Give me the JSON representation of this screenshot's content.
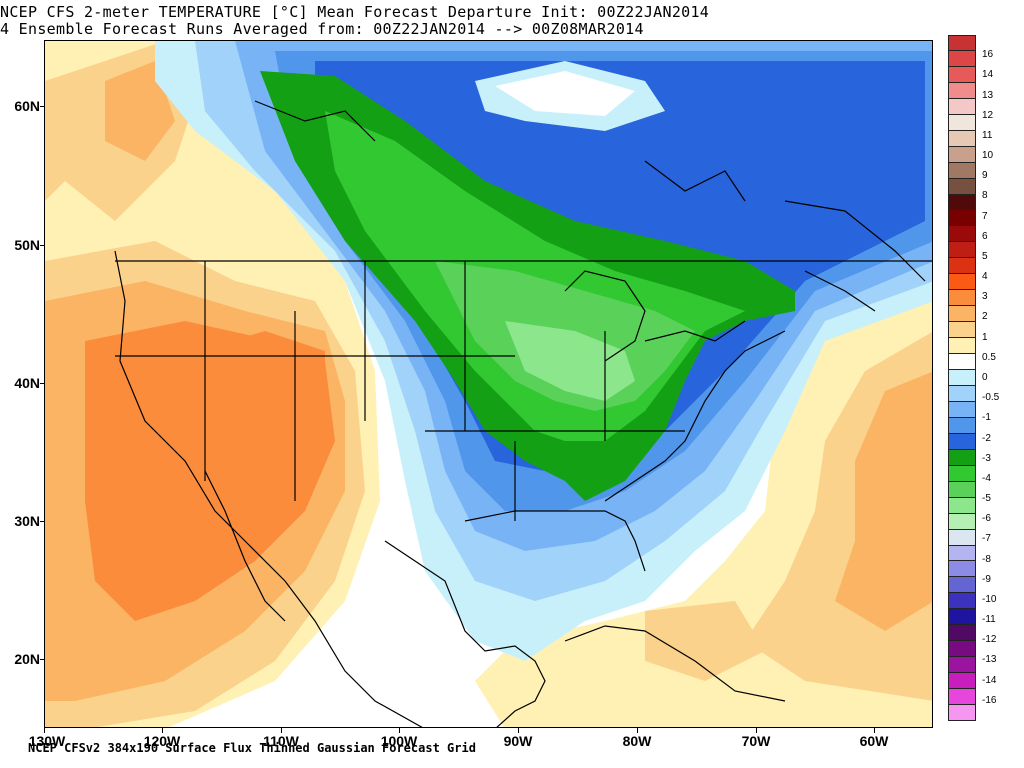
{
  "title": {
    "line1": "NCEP CFS 2-meter TEMPERATURE [°C] Mean Forecast Departure Init: 00Z22JAN2014",
    "line2": "4 Ensemble Forecast Runs Averaged from: 00Z22JAN2014 --> 00Z08MAR2014"
  },
  "footer": "NCEP CFSv2 384x190 Surface Flux Thinned Gaussian Forecast Grid",
  "axes": {
    "lat_labels": [
      "60N",
      "50N",
      "40N",
      "30N",
      "20N"
    ],
    "lon_labels": [
      "130W",
      "120W",
      "110W",
      "100W",
      "90W",
      "80W",
      "70W",
      "60W"
    ]
  },
  "colorbar": {
    "labels": [
      "16",
      "14",
      "13",
      "12",
      "11",
      "10",
      "9",
      "8",
      "7",
      "6",
      "5",
      "4",
      "3",
      "2",
      "1",
      "0.5",
      "0",
      "-0.5",
      "-1",
      "-2",
      "-3",
      "-4",
      "-5",
      "-6",
      "-7",
      "-8",
      "-9",
      "-10",
      "-11",
      "-12",
      "-13",
      "-14",
      "-16"
    ],
    "colors": [
      "#c83232",
      "#dc4646",
      "#e65a5a",
      "#f08c8c",
      "#f5b4b4",
      "#f0dcd2",
      "#e6c8b4",
      "#d2aa96",
      "#b48c78",
      "#96644b",
      "#6e3c28",
      "#780000",
      "#8c0a0a",
      "#aa1414",
      "#c82814",
      "#e63c14",
      "#fa5a14",
      "#fa7828",
      "#fa9650",
      "#fab46e",
      "#fad28c",
      "#fff0b4",
      "#ffffff",
      "#b4f0fa",
      "#96d2fa",
      "#78b9fa",
      "#5096f0",
      "#3c78e6",
      "#1e6eeb",
      "#14a01e",
      "#28be28",
      "#50d250",
      "#78e678",
      "#a0f0a0",
      "#c8ffc8",
      "#dcdcf5",
      "#b4b4f0",
      "#8c8ce6",
      "#6e64dc",
      "#4b3cc8",
      "#2d1eaa",
      "#500064",
      "#7d0a82",
      "#a01496",
      "#c81eb4",
      "#e63cd2",
      "#f58cf0"
    ],
    "selected_colors": [
      "#c83232",
      "#dc4646",
      "#e65a5a",
      "#f08c8c",
      "#f5c8c8",
      "#f0e6dc",
      "#e6c8b4",
      "#c8a08c",
      "#a07864",
      "#785040",
      "#500a0a",
      "#780000",
      "#9b0a0a",
      "#be1e14",
      "#dc3214",
      "#fa5a14",
      "#fa8c3c",
      "#fab464",
      "#fad28c",
      "#fff0b4",
      "#ffffff",
      "#c8f0fa",
      "#a0d2fa",
      "#78b4f5",
      "#5096eb",
      "#2864dc",
      "#14a014",
      "#32c832",
      "#5ad25a",
      "#8ce68c",
      "#b4f0b4",
      "#dce6f0",
      "#b4b4f0",
      "#8c8ce6",
      "#6464d2",
      "#3c32be",
      "#1e14a0",
      "#500a64",
      "#780a82",
      "#9b14a0",
      "#c81ebe",
      "#e646dc",
      "#f596f0"
    ]
  }
}
